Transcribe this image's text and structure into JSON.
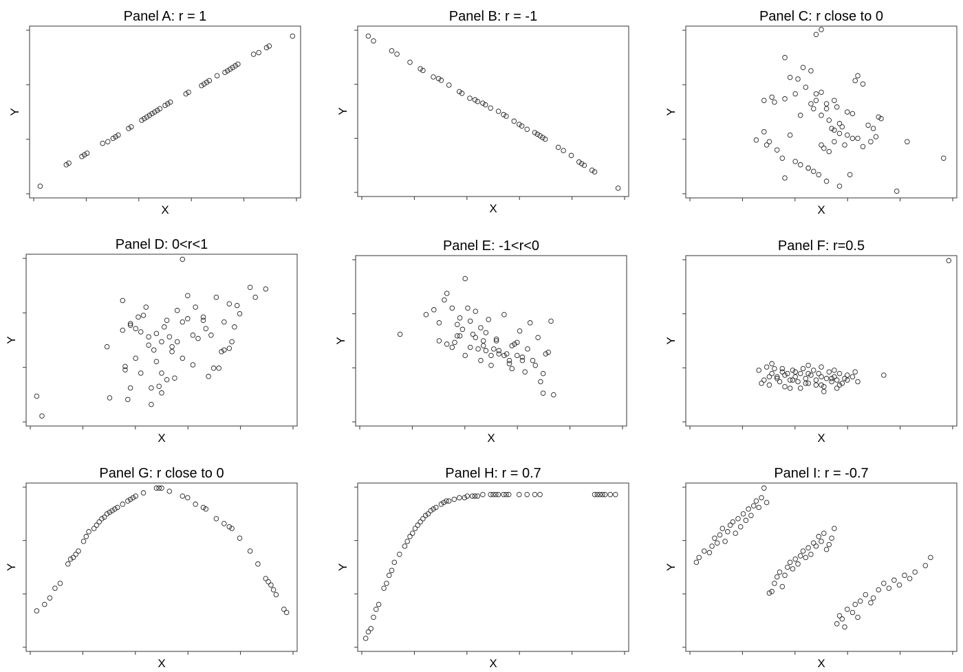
{
  "chart_data": [
    {
      "type": "scatter",
      "title": "Panel A: r = 1",
      "xlabel": "X",
      "ylabel": "Y",
      "xlim": [
        0,
        1
      ],
      "ylim": [
        0,
        1
      ],
      "grid": false,
      "x": [
        0.02,
        0.12,
        0.13,
        0.18,
        0.19,
        0.2,
        0.26,
        0.28,
        0.3,
        0.31,
        0.32,
        0.36,
        0.37,
        0.41,
        0.42,
        0.43,
        0.44,
        0.45,
        0.46,
        0.47,
        0.48,
        0.5,
        0.51,
        0.52,
        0.58,
        0.59,
        0.64,
        0.65,
        0.66,
        0.67,
        0.7,
        0.73,
        0.74,
        0.75,
        0.76,
        0.77,
        0.78,
        0.84,
        0.86,
        0.89,
        0.9,
        0.99
      ],
      "y": [
        0.05,
        0.18,
        0.19,
        0.23,
        0.24,
        0.25,
        0.31,
        0.32,
        0.34,
        0.35,
        0.36,
        0.4,
        0.41,
        0.45,
        0.46,
        0.47,
        0.48,
        0.49,
        0.5,
        0.51,
        0.52,
        0.54,
        0.55,
        0.56,
        0.61,
        0.62,
        0.66,
        0.67,
        0.68,
        0.69,
        0.72,
        0.74,
        0.75,
        0.76,
        0.77,
        0.78,
        0.79,
        0.85,
        0.86,
        0.89,
        0.9,
        0.96
      ]
    },
    {
      "type": "scatter",
      "title": "Panel B: r = -1",
      "xlabel": "X",
      "ylabel": "Y",
      "xlim": [
        0,
        1
      ],
      "ylim": [
        0,
        1
      ],
      "grid": false,
      "x": [
        0.02,
        0.04,
        0.11,
        0.13,
        0.18,
        0.22,
        0.23,
        0.27,
        0.29,
        0.3,
        0.33,
        0.37,
        0.38,
        0.41,
        0.43,
        0.44,
        0.46,
        0.47,
        0.49,
        0.52,
        0.54,
        0.55,
        0.58,
        0.6,
        0.61,
        0.63,
        0.66,
        0.67,
        0.68,
        0.69,
        0.7,
        0.75,
        0.77,
        0.8,
        0.83,
        0.84,
        0.85,
        0.88,
        0.89,
        0.98
      ],
      "y": [
        0.96,
        0.93,
        0.87,
        0.85,
        0.8,
        0.76,
        0.75,
        0.71,
        0.7,
        0.69,
        0.66,
        0.62,
        0.61,
        0.58,
        0.57,
        0.56,
        0.55,
        0.54,
        0.52,
        0.5,
        0.48,
        0.47,
        0.44,
        0.42,
        0.41,
        0.39,
        0.37,
        0.36,
        0.35,
        0.34,
        0.33,
        0.28,
        0.26,
        0.23,
        0.19,
        0.18,
        0.17,
        0.14,
        0.13,
        0.03
      ]
    },
    {
      "type": "scatter",
      "title": "Panel C: r close to 0",
      "xlabel": "X",
      "ylabel": "Y",
      "xlim": [
        0,
        1
      ],
      "ylim": [
        0,
        1
      ],
      "grid": false,
      "x": [
        0.28,
        0.31,
        0.32,
        0.29,
        0.38,
        0.36,
        0.4,
        0.43,
        0.44,
        0.46,
        0.47,
        0.5,
        0.48,
        0.52,
        0.55,
        0.56,
        0.57,
        0.6,
        0.62,
        0.63,
        0.64,
        0.66,
        0.68,
        0.7,
        0.72,
        0.73,
        0.36,
        0.38,
        0.41,
        0.46,
        0.48,
        0.5,
        0.52,
        0.53,
        0.54,
        0.55,
        0.58,
        0.6,
        0.62,
        0.28,
        0.3,
        0.33,
        0.35,
        0.4,
        0.42,
        0.45,
        0.47,
        0.49,
        0.5,
        0.51,
        0.53,
        0.55,
        0.57,
        0.59,
        0.64,
        0.66,
        0.69,
        0.71,
        0.83,
        0.97,
        0.36,
        0.45,
        0.52,
        0.57,
        0.61,
        0.79,
        0.48,
        0.5,
        0.25,
        0.42
      ],
      "y": [
        0.57,
        0.59,
        0.56,
        0.3,
        0.36,
        0.58,
        0.61,
        0.77,
        0.65,
        0.55,
        0.52,
        0.62,
        0.61,
        0.55,
        0.57,
        0.53,
        0.43,
        0.5,
        0.49,
        0.69,
        0.72,
        0.67,
        0.42,
        0.4,
        0.47,
        0.46,
        0.83,
        0.71,
        0.7,
        0.75,
        0.57,
        0.48,
        0.52,
        0.45,
        0.4,
        0.39,
        0.41,
        0.36,
        0.34,
        0.38,
        0.32,
        0.27,
        0.22,
        0.2,
        0.18,
        0.16,
        0.14,
        0.12,
        0.3,
        0.28,
        0.26,
        0.32,
        0.37,
        0.3,
        0.34,
        0.29,
        0.32,
        0.35,
        0.32,
        0.22,
        0.1,
        0.16,
        0.08,
        0.05,
        0.12,
        0.02,
        0.97,
        1.0,
        0.33,
        0.48
      ]
    },
    {
      "type": "scatter",
      "title": "Panel D: 0<r<1",
      "xlabel": "X",
      "ylabel": "Y",
      "xlim": [
        0,
        1
      ],
      "ylim": [
        0,
        1
      ],
      "grid": false,
      "x": [
        0.02,
        0.04,
        0.29,
        0.3,
        0.35,
        0.36,
        0.37,
        0.38,
        0.4,
        0.41,
        0.42,
        0.44,
        0.45,
        0.46,
        0.48,
        0.49,
        0.5,
        0.51,
        0.52,
        0.53,
        0.55,
        0.56,
        0.58,
        0.6,
        0.62,
        0.63,
        0.66,
        0.67,
        0.69,
        0.71,
        0.73,
        0.74,
        0.76,
        0.77,
        0.79,
        0.84,
        0.86,
        0.9,
        0.35,
        0.36,
        0.38,
        0.4,
        0.43,
        0.45,
        0.47,
        0.48,
        0.5,
        0.52,
        0.54,
        0.56,
        0.58,
        0.6,
        0.62,
        0.66,
        0.7,
        0.74,
        0.38,
        0.42,
        0.46,
        0.5,
        0.54,
        0.58,
        0.64,
        0.68,
        0.72,
        0.76,
        0.78,
        0.8
      ],
      "y": [
        0.16,
        0.04,
        0.46,
        0.15,
        0.56,
        0.32,
        0.14,
        0.6,
        0.39,
        0.64,
        0.3,
        0.7,
        0.47,
        0.21,
        0.54,
        0.22,
        0.49,
        0.58,
        0.62,
        0.52,
        0.27,
        0.68,
        0.61,
        0.77,
        0.53,
        0.7,
        0.62,
        0.57,
        0.53,
        0.76,
        0.43,
        0.44,
        0.72,
        0.49,
        0.71,
        0.82,
        0.76,
        0.81,
        0.74,
        0.34,
        0.21,
        0.57,
        0.65,
        0.52,
        0.44,
        0.37,
        0.3,
        0.26,
        0.43,
        0.49,
        0.39,
        0.63,
        0.35,
        0.64,
        0.33,
        0.61,
        0.59,
        0.55,
        0.11,
        0.18,
        0.46,
        0.99,
        0.51,
        0.28,
        0.33,
        0.45,
        0.58,
        0.66
      ]
    },
    {
      "type": "scatter",
      "title": "Panel E: -1<r<0",
      "xlabel": "X",
      "ylabel": "Y",
      "xlim": [
        0,
        1
      ],
      "ylim": [
        0,
        1
      ],
      "grid": false,
      "x": [
        0.15,
        0.25,
        0.28,
        0.3,
        0.32,
        0.33,
        0.35,
        0.36,
        0.37,
        0.38,
        0.39,
        0.4,
        0.41,
        0.42,
        0.43,
        0.44,
        0.45,
        0.46,
        0.47,
        0.48,
        0.49,
        0.5,
        0.51,
        0.52,
        0.53,
        0.55,
        0.56,
        0.57,
        0.58,
        0.59,
        0.6,
        0.61,
        0.62,
        0.63,
        0.65,
        0.68,
        0.69,
        0.7,
        0.72,
        0.73,
        0.74,
        0.35,
        0.38,
        0.4,
        0.44,
        0.46,
        0.48,
        0.5,
        0.52,
        0.55,
        0.57,
        0.6,
        0.64,
        0.67,
        0.71,
        0.3,
        0.33,
        0.37,
        0.42,
        0.47,
        0.53,
        0.58,
        0.62,
        0.66,
        0.7
      ],
      "y": [
        0.54,
        0.66,
        0.69,
        0.5,
        0.75,
        0.79,
        0.7,
        0.49,
        0.6,
        0.64,
        0.57,
        0.88,
        0.7,
        0.62,
        0.54,
        0.68,
        0.45,
        0.58,
        0.47,
        0.55,
        0.63,
        0.41,
        0.45,
        0.51,
        0.44,
        0.66,
        0.42,
        0.36,
        0.33,
        0.48,
        0.41,
        0.56,
        0.38,
        0.31,
        0.61,
        0.52,
        0.25,
        0.18,
        0.43,
        0.62,
        0.17,
        0.46,
        0.53,
        0.41,
        0.52,
        0.38,
        0.44,
        0.35,
        0.5,
        0.41,
        0.38,
        0.49,
        0.45,
        0.35,
        0.42,
        0.61,
        0.48,
        0.53,
        0.46,
        0.5,
        0.42,
        0.47,
        0.4,
        0.38,
        0.3
      ]
    },
    {
      "type": "scatter",
      "title": "Panel F: r=0.5",
      "xlabel": "X",
      "ylabel": "Y",
      "xlim": [
        0,
        1
      ],
      "ylim": [
        0,
        1
      ],
      "grid": false,
      "x": [
        0.26,
        0.28,
        0.29,
        0.3,
        0.31,
        0.32,
        0.33,
        0.34,
        0.35,
        0.36,
        0.37,
        0.38,
        0.39,
        0.4,
        0.41,
        0.42,
        0.43,
        0.44,
        0.45,
        0.46,
        0.47,
        0.48,
        0.49,
        0.5,
        0.51,
        0.52,
        0.53,
        0.54,
        0.55,
        0.56,
        0.57,
        0.58,
        0.59,
        0.6,
        0.62,
        0.64,
        0.74,
        0.27,
        0.3,
        0.33,
        0.36,
        0.39,
        0.42,
        0.45,
        0.48,
        0.51,
        0.54,
        0.57,
        0.6,
        0.63,
        0.31,
        0.35,
        0.4,
        0.45,
        0.5,
        0.55,
        0.99,
        0.38,
        0.44,
        0.5,
        0.56
      ],
      "y": [
        0.32,
        0.26,
        0.34,
        0.28,
        0.3,
        0.33,
        0.27,
        0.25,
        0.31,
        0.29,
        0.3,
        0.26,
        0.32,
        0.28,
        0.25,
        0.3,
        0.33,
        0.27,
        0.24,
        0.29,
        0.32,
        0.26,
        0.3,
        0.28,
        0.22,
        0.27,
        0.31,
        0.25,
        0.28,
        0.26,
        0.3,
        0.24,
        0.27,
        0.29,
        0.28,
        0.25,
        0.29,
        0.24,
        0.23,
        0.28,
        0.22,
        0.26,
        0.21,
        0.3,
        0.23,
        0.19,
        0.27,
        0.23,
        0.26,
        0.31,
        0.36,
        0.33,
        0.31,
        0.35,
        0.34,
        0.32,
        0.99,
        0.21,
        0.24,
        0.23,
        0.21
      ]
    },
    {
      "type": "scatter",
      "title": "Panel G: r close to 0",
      "xlabel": "X",
      "ylabel": "Y",
      "xlim": [
        0,
        1
      ],
      "ylim": [
        0,
        1
      ],
      "grid": false,
      "x": [
        0.02,
        0.05,
        0.07,
        0.09,
        0.11,
        0.14,
        0.15,
        0.16,
        0.17,
        0.18,
        0.2,
        0.21,
        0.22,
        0.24,
        0.25,
        0.26,
        0.27,
        0.28,
        0.29,
        0.3,
        0.31,
        0.32,
        0.33,
        0.35,
        0.37,
        0.38,
        0.39,
        0.4,
        0.43,
        0.48,
        0.49,
        0.5,
        0.53,
        0.58,
        0.6,
        0.63,
        0.66,
        0.67,
        0.71,
        0.74,
        0.76,
        0.77,
        0.8,
        0.84,
        0.87,
        0.9,
        0.91,
        0.92,
        0.93,
        0.94,
        0.97,
        0.98
      ],
      "y": [
        0.23,
        0.27,
        0.31,
        0.37,
        0.4,
        0.52,
        0.55,
        0.56,
        0.58,
        0.6,
        0.66,
        0.69,
        0.72,
        0.74,
        0.76,
        0.78,
        0.8,
        0.81,
        0.83,
        0.84,
        0.85,
        0.86,
        0.87,
        0.89,
        0.91,
        0.92,
        0.93,
        0.94,
        0.96,
        0.99,
        0.99,
        0.99,
        0.97,
        0.94,
        0.93,
        0.89,
        0.87,
        0.86,
        0.8,
        0.77,
        0.75,
        0.74,
        0.68,
        0.6,
        0.52,
        0.43,
        0.41,
        0.39,
        0.36,
        0.33,
        0.24,
        0.22
      ]
    },
    {
      "type": "scatter",
      "title": "Panel H: r = 0.7",
      "xlabel": "X",
      "ylabel": "Y",
      "xlim": [
        0,
        1
      ],
      "ylim": [
        0,
        1
      ],
      "grid": false,
      "x": [
        0.01,
        0.02,
        0.03,
        0.04,
        0.05,
        0.06,
        0.08,
        0.09,
        0.1,
        0.11,
        0.12,
        0.14,
        0.16,
        0.17,
        0.18,
        0.19,
        0.2,
        0.21,
        0.22,
        0.23,
        0.24,
        0.25,
        0.26,
        0.27,
        0.28,
        0.3,
        0.31,
        0.32,
        0.33,
        0.35,
        0.37,
        0.39,
        0.4,
        0.42,
        0.43,
        0.44,
        0.46,
        0.49,
        0.5,
        0.51,
        0.52,
        0.54,
        0.55,
        0.56,
        0.6,
        0.63,
        0.66,
        0.68,
        0.89,
        0.9,
        0.91,
        0.92,
        0.93,
        0.95,
        0.97
      ],
      "y": [
        0.06,
        0.1,
        0.12,
        0.19,
        0.24,
        0.27,
        0.37,
        0.4,
        0.45,
        0.48,
        0.53,
        0.58,
        0.63,
        0.66,
        0.69,
        0.71,
        0.74,
        0.76,
        0.78,
        0.8,
        0.82,
        0.83,
        0.85,
        0.86,
        0.87,
        0.89,
        0.9,
        0.91,
        0.91,
        0.92,
        0.93,
        0.93,
        0.94,
        0.94,
        0.94,
        0.94,
        0.95,
        0.95,
        0.95,
        0.95,
        0.95,
        0.95,
        0.95,
        0.95,
        0.95,
        0.95,
        0.95,
        0.95,
        0.95,
        0.95,
        0.95,
        0.95,
        0.95,
        0.95,
        0.95
      ]
    },
    {
      "type": "scatter",
      "title": "Panel I: r = -0.7",
      "xlabel": "X",
      "ylabel": "Y",
      "xlim": [
        0,
        1
      ],
      "ylim": [
        0,
        1
      ],
      "grid": false,
      "x": [
        0.02,
        0.03,
        0.05,
        0.07,
        0.08,
        0.09,
        0.1,
        0.11,
        0.12,
        0.13,
        0.14,
        0.15,
        0.16,
        0.17,
        0.18,
        0.19,
        0.2,
        0.21,
        0.22,
        0.23,
        0.24,
        0.25,
        0.26,
        0.27,
        0.28,
        0.29,
        0.3,
        0.31,
        0.32,
        0.33,
        0.34,
        0.35,
        0.36,
        0.37,
        0.38,
        0.39,
        0.4,
        0.41,
        0.42,
        0.43,
        0.44,
        0.45,
        0.46,
        0.47,
        0.48,
        0.49,
        0.5,
        0.51,
        0.52,
        0.53,
        0.54,
        0.55,
        0.56,
        0.57,
        0.58,
        0.59,
        0.6,
        0.62,
        0.63,
        0.64,
        0.65,
        0.67,
        0.69,
        0.7,
        0.72,
        0.74,
        0.76,
        0.78,
        0.8,
        0.82,
        0.84,
        0.86,
        0.9,
        0.92
      ],
      "y": [
        0.53,
        0.56,
        0.6,
        0.59,
        0.63,
        0.68,
        0.65,
        0.7,
        0.74,
        0.66,
        0.72,
        0.76,
        0.78,
        0.71,
        0.8,
        0.75,
        0.83,
        0.79,
        0.86,
        0.82,
        0.88,
        0.91,
        0.87,
        0.93,
        0.99,
        0.9,
        0.34,
        0.35,
        0.4,
        0.44,
        0.47,
        0.38,
        0.45,
        0.5,
        0.53,
        0.49,
        0.55,
        0.52,
        0.57,
        0.6,
        0.56,
        0.62,
        0.58,
        0.65,
        0.63,
        0.69,
        0.66,
        0.71,
        0.61,
        0.64,
        0.68,
        0.74,
        0.15,
        0.2,
        0.18,
        0.13,
        0.24,
        0.22,
        0.27,
        0.19,
        0.29,
        0.33,
        0.28,
        0.31,
        0.36,
        0.4,
        0.37,
        0.42,
        0.39,
        0.45,
        0.43,
        0.47,
        0.51,
        0.56
      ]
    }
  ]
}
